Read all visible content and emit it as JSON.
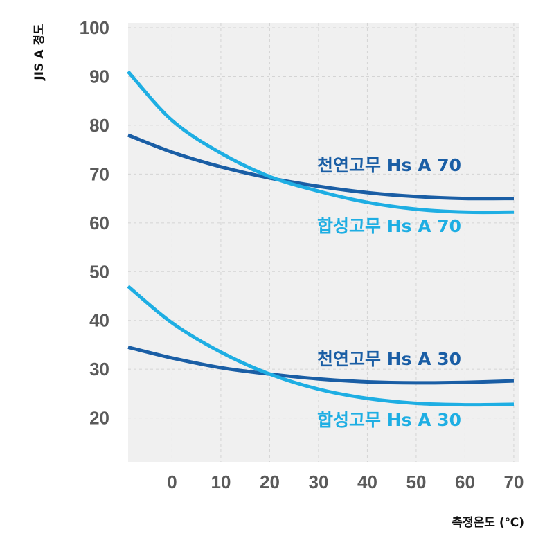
{
  "chart_data": {
    "type": "line",
    "xlabel": "측정온도 (℃)",
    "ylabel": "JIS A 경도",
    "xlim": [
      -9,
      71
    ],
    "ylim": [
      11,
      101
    ],
    "x_ticks": [
      "0",
      "10",
      "20",
      "30",
      "40",
      "50",
      "60",
      "70"
    ],
    "y_ticks": [
      "20",
      "30",
      "40",
      "50",
      "60",
      "70",
      "80",
      "90",
      "100"
    ],
    "grid": true,
    "colors": {
      "natural": "#1a5ea5",
      "synthetic": "#1eaee3",
      "plot_bg": "#f0f0f0",
      "grid": "#d4d4d4"
    },
    "series": [
      {
        "name": "천연고무 Hs A 70",
        "color": "natural",
        "x": [
          -9,
          0,
          10,
          20,
          30,
          40,
          50,
          60,
          70
        ],
        "y": [
          78,
          74.5,
          71.5,
          69.2,
          67.5,
          66.2,
          65.4,
          65.0,
          65.0
        ]
      },
      {
        "name": "합성고무 Hs A 70",
        "color": "synthetic",
        "x": [
          -9,
          0,
          10,
          20,
          30,
          40,
          50,
          60,
          70
        ],
        "y": [
          91,
          81,
          74.3,
          69.5,
          66.5,
          64.2,
          62.8,
          62.2,
          62.2
        ]
      },
      {
        "name": "천연고무 Hs A 30",
        "color": "natural",
        "x": [
          -9,
          0,
          10,
          20,
          30,
          40,
          50,
          60,
          70
        ],
        "y": [
          34.5,
          32.3,
          30.3,
          29.0,
          28.0,
          27.4,
          27.2,
          27.3,
          27.6
        ]
      },
      {
        "name": "합성고무 Hs A 30",
        "color": "synthetic",
        "x": [
          -9,
          0,
          10,
          20,
          30,
          40,
          50,
          60,
          70
        ],
        "y": [
          47,
          39.5,
          33.5,
          29.0,
          25.9,
          24.0,
          23.0,
          22.7,
          22.8
        ]
      }
    ]
  }
}
